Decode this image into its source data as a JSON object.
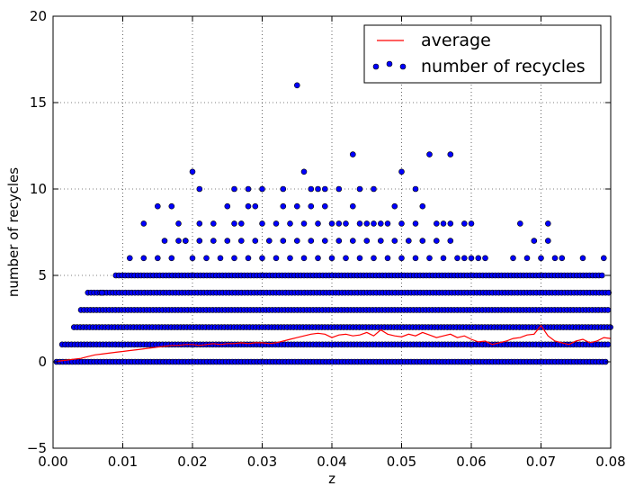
{
  "chart_data": {
    "type": "scatter",
    "title": "",
    "xlabel": "z",
    "ylabel": "number of recycles",
    "xlim": [
      0.0,
      0.08
    ],
    "ylim": [
      -5,
      20
    ],
    "x_ticks": [
      "0.00",
      "0.01",
      "0.02",
      "0.03",
      "0.04",
      "0.05",
      "0.06",
      "0.07",
      "0.08"
    ],
    "y_ticks": [
      "−5",
      "0",
      "5",
      "10",
      "15",
      "20"
    ],
    "grid": true,
    "legend_position": "top-right",
    "legend": [
      "average",
      "number of recycles"
    ],
    "series": [
      {
        "name": "average",
        "kind": "line",
        "color": "#ff0000",
        "x": [
          0.0005,
          0.001,
          0.002,
          0.003,
          0.004,
          0.005,
          0.006,
          0.007,
          0.008,
          0.009,
          0.01,
          0.011,
          0.012,
          0.013,
          0.014,
          0.015,
          0.016,
          0.017,
          0.018,
          0.019,
          0.02,
          0.021,
          0.022,
          0.023,
          0.024,
          0.025,
          0.026,
          0.027,
          0.028,
          0.029,
          0.03,
          0.031,
          0.032,
          0.033,
          0.034,
          0.035,
          0.036,
          0.037,
          0.038,
          0.039,
          0.04,
          0.041,
          0.042,
          0.043,
          0.044,
          0.045,
          0.046,
          0.047,
          0.048,
          0.049,
          0.05,
          0.051,
          0.052,
          0.053,
          0.054,
          0.055,
          0.056,
          0.057,
          0.058,
          0.059,
          0.06,
          0.061,
          0.062,
          0.063,
          0.064,
          0.065,
          0.066,
          0.067,
          0.068,
          0.069,
          0.07,
          0.071,
          0.072,
          0.073,
          0.074,
          0.075,
          0.076,
          0.077,
          0.078,
          0.079,
          0.08
        ],
        "y": [
          0.0,
          0.05,
          0.1,
          0.15,
          0.2,
          0.3,
          0.4,
          0.45,
          0.5,
          0.55,
          0.6,
          0.65,
          0.7,
          0.75,
          0.8,
          0.85,
          0.9,
          0.95,
          0.95,
          1.0,
          1.0,
          0.95,
          1.0,
          1.05,
          1.0,
          1.05,
          1.05,
          1.1,
          1.05,
          1.1,
          1.1,
          1.05,
          1.1,
          1.2,
          1.3,
          1.4,
          1.5,
          1.6,
          1.65,
          1.6,
          1.4,
          1.55,
          1.6,
          1.5,
          1.55,
          1.7,
          1.5,
          1.85,
          1.6,
          1.5,
          1.45,
          1.6,
          1.5,
          1.7,
          1.55,
          1.4,
          1.5,
          1.6,
          1.4,
          1.5,
          1.3,
          1.15,
          1.2,
          1.0,
          1.1,
          1.2,
          1.35,
          1.4,
          1.55,
          1.6,
          2.1,
          1.5,
          1.2,
          1.1,
          1.0,
          1.2,
          1.3,
          1.1,
          1.2,
          1.4,
          1.35
        ]
      },
      {
        "name": "number of recycles",
        "kind": "scatter",
        "color": "#0000ff",
        "note_levels": [
          0,
          1,
          2,
          3,
          4,
          5,
          6,
          7,
          8,
          9,
          10,
          11,
          12,
          16
        ],
        "ranges": [
          {
            "y": 0,
            "xmin": 0.0005,
            "xmax": 0.0795
          },
          {
            "y": 1,
            "xmin": 0.0013,
            "xmax": 0.08
          },
          {
            "y": 2,
            "xmin": 0.003,
            "xmax": 0.08
          },
          {
            "y": 3,
            "xmin": 0.004,
            "xmax": 0.08
          },
          {
            "y": 4,
            "xmin": 0.005,
            "xmax": 0.08
          },
          {
            "y": 5,
            "xmin": 0.009,
            "xmax": 0.079
          }
        ],
        "points": [
          [
            0.007,
            4
          ],
          [
            0.011,
            6
          ],
          [
            0.013,
            6
          ],
          [
            0.015,
            6
          ],
          [
            0.016,
            7
          ],
          [
            0.017,
            6
          ],
          [
            0.018,
            7
          ],
          [
            0.019,
            7
          ],
          [
            0.02,
            6
          ],
          [
            0.021,
            7
          ],
          [
            0.022,
            6
          ],
          [
            0.023,
            7
          ],
          [
            0.024,
            6
          ],
          [
            0.025,
            7
          ],
          [
            0.026,
            6
          ],
          [
            0.027,
            7
          ],
          [
            0.028,
            6
          ],
          [
            0.029,
            7
          ],
          [
            0.03,
            6
          ],
          [
            0.031,
            7
          ],
          [
            0.032,
            6
          ],
          [
            0.033,
            7
          ],
          [
            0.034,
            6
          ],
          [
            0.035,
            7
          ],
          [
            0.036,
            6
          ],
          [
            0.037,
            7
          ],
          [
            0.038,
            6
          ],
          [
            0.039,
            7
          ],
          [
            0.04,
            6
          ],
          [
            0.041,
            7
          ],
          [
            0.042,
            6
          ],
          [
            0.043,
            7
          ],
          [
            0.044,
            6
          ],
          [
            0.045,
            7
          ],
          [
            0.046,
            6
          ],
          [
            0.047,
            7
          ],
          [
            0.048,
            6
          ],
          [
            0.049,
            7
          ],
          [
            0.05,
            6
          ],
          [
            0.051,
            7
          ],
          [
            0.052,
            6
          ],
          [
            0.053,
            7
          ],
          [
            0.054,
            6
          ],
          [
            0.055,
            7
          ],
          [
            0.056,
            6
          ],
          [
            0.057,
            7
          ],
          [
            0.058,
            6
          ],
          [
            0.059,
            6
          ],
          [
            0.06,
            6
          ],
          [
            0.061,
            6
          ],
          [
            0.062,
            6
          ],
          [
            0.066,
            6
          ],
          [
            0.068,
            6
          ],
          [
            0.069,
            7
          ],
          [
            0.07,
            6
          ],
          [
            0.071,
            7
          ],
          [
            0.072,
            6
          ],
          [
            0.073,
            6
          ],
          [
            0.076,
            6
          ],
          [
            0.079,
            6
          ],
          [
            0.013,
            8
          ],
          [
            0.015,
            9
          ],
          [
            0.017,
            9
          ],
          [
            0.018,
            8
          ],
          [
            0.019,
            7
          ],
          [
            0.021,
            8
          ],
          [
            0.023,
            8
          ],
          [
            0.025,
            9
          ],
          [
            0.026,
            8
          ],
          [
            0.027,
            8
          ],
          [
            0.028,
            9
          ],
          [
            0.029,
            9
          ],
          [
            0.03,
            8
          ],
          [
            0.032,
            8
          ],
          [
            0.033,
            9
          ],
          [
            0.034,
            8
          ],
          [
            0.035,
            9
          ],
          [
            0.036,
            8
          ],
          [
            0.037,
            9
          ],
          [
            0.038,
            8
          ],
          [
            0.039,
            9
          ],
          [
            0.04,
            8
          ],
          [
            0.041,
            8
          ],
          [
            0.042,
            8
          ],
          [
            0.043,
            9
          ],
          [
            0.044,
            8
          ],
          [
            0.045,
            8
          ],
          [
            0.046,
            8
          ],
          [
            0.047,
            8
          ],
          [
            0.048,
            8
          ],
          [
            0.049,
            9
          ],
          [
            0.05,
            8
          ],
          [
            0.052,
            8
          ],
          [
            0.053,
            9
          ],
          [
            0.055,
            8
          ],
          [
            0.056,
            8
          ],
          [
            0.057,
            8
          ],
          [
            0.059,
            8
          ],
          [
            0.06,
            8
          ],
          [
            0.067,
            8
          ],
          [
            0.071,
            8
          ],
          [
            0.02,
            11
          ],
          [
            0.021,
            10
          ],
          [
            0.026,
            10
          ],
          [
            0.028,
            10
          ],
          [
            0.03,
            10
          ],
          [
            0.033,
            10
          ],
          [
            0.036,
            11
          ],
          [
            0.037,
            10
          ],
          [
            0.038,
            10
          ],
          [
            0.039,
            10
          ],
          [
            0.041,
            10
          ],
          [
            0.043,
            12
          ],
          [
            0.044,
            10
          ],
          [
            0.046,
            10
          ],
          [
            0.05,
            11
          ],
          [
            0.052,
            10
          ],
          [
            0.054,
            12
          ],
          [
            0.057,
            12
          ],
          [
            0.035,
            16
          ]
        ]
      }
    ]
  }
}
